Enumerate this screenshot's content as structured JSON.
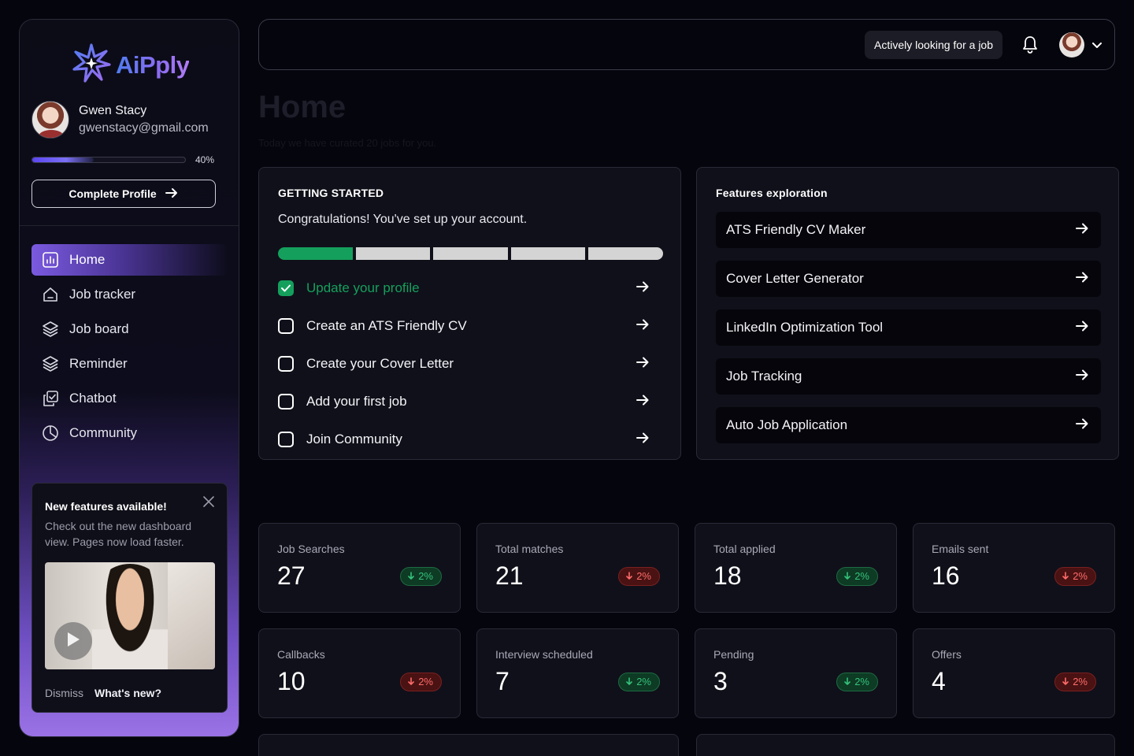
{
  "brand": {
    "name": "AiPply"
  },
  "user": {
    "name": "Gwen Stacy",
    "email": "gwenstacy@gmail.com"
  },
  "profile": {
    "progress_percent": 40,
    "progress_label": "40%",
    "complete_label": "Complete Profile"
  },
  "nav": [
    {
      "label": "Home",
      "icon": "chart-icon",
      "active": true
    },
    {
      "label": "Job tracker",
      "icon": "home-icon",
      "active": false
    },
    {
      "label": "Job board",
      "icon": "layers-icon",
      "active": false
    },
    {
      "label": "Reminder",
      "icon": "layers-icon",
      "active": false
    },
    {
      "label": "Chatbot",
      "icon": "chat-copy-icon",
      "active": false
    },
    {
      "label": "Community",
      "icon": "pie-icon",
      "active": false
    }
  ],
  "promo": {
    "title": "New features available!",
    "text": "Check out the new dashboard view. Pages now load faster.",
    "dismiss": "Dismiss",
    "whats_new": "What's new?"
  },
  "header": {
    "status": "Actively looking for a job"
  },
  "page": {
    "title": "Home",
    "subtitle": "Today we have curated 20 jobs for you."
  },
  "getting_started": {
    "heading": "GETTING STARTED",
    "message": "Congratulations! You've set up your account.",
    "segments_done": 1,
    "segments_total": 5,
    "tasks": [
      {
        "label": "Update your profile",
        "done": true
      },
      {
        "label": "Create an ATS Friendly CV",
        "done": false
      },
      {
        "label": "Create your Cover Letter",
        "done": false
      },
      {
        "label": "Add your first job",
        "done": false
      },
      {
        "label": "Join Community",
        "done": false
      }
    ]
  },
  "features": {
    "heading": "Features exploration",
    "items": [
      "ATS Friendly CV Maker",
      "Cover Letter Generator",
      "LinkedIn Optimization Tool",
      "Job Tracking",
      "Auto Job Application"
    ]
  },
  "stats": [
    {
      "label": "Job Searches",
      "value": "27",
      "change": "2%",
      "trend": "up"
    },
    {
      "label": "Total matches",
      "value": "21",
      "change": "2%",
      "trend": "down"
    },
    {
      "label": "Total applied",
      "value": "18",
      "change": "2%",
      "trend": "up"
    },
    {
      "label": "Emails sent",
      "value": "16",
      "change": "2%",
      "trend": "down"
    },
    {
      "label": "Callbacks",
      "value": "10",
      "change": "2%",
      "trend": "down"
    },
    {
      "label": "Interview scheduled",
      "value": "7",
      "change": "2%",
      "trend": "up"
    },
    {
      "label": "Pending",
      "value": "3",
      "change": "2%",
      "trend": "up"
    },
    {
      "label": "Offers",
      "value": "4",
      "change": "2%",
      "trend": "down"
    }
  ],
  "colors": {
    "accent": "#7a5ae0",
    "success": "#14a05c",
    "danger": "#ff6b6b"
  }
}
